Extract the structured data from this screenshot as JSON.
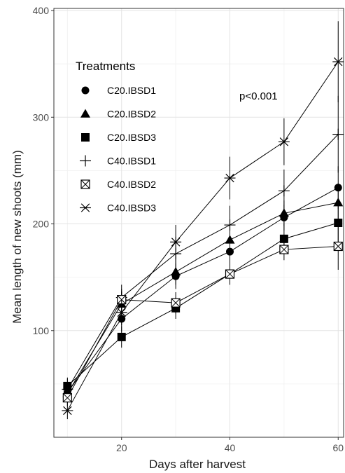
{
  "chart_data": {
    "type": "line",
    "xlabel": "Days after harvest",
    "ylabel": "Mean length of new shoots (mm)",
    "x": [
      10,
      20,
      30,
      40,
      50,
      60
    ],
    "xlim": [
      7.5,
      61
    ],
    "ylim": [
      0,
      402
    ],
    "xticks": [
      20,
      40,
      60
    ],
    "yticks": [
      100,
      200,
      300,
      400
    ],
    "grid": true,
    "legend": {
      "title": "Treatments",
      "placement": "top-left"
    },
    "annotation": "p<0.001",
    "series": [
      {
        "name": "C20.IBSD1",
        "marker": "circle",
        "values": [
          42,
          111,
          151,
          174,
          206,
          234
        ],
        "errors": [
          8,
          12,
          12,
          12,
          12,
          20
        ]
      },
      {
        "name": "C20.IBSD2",
        "marker": "triangle",
        "values": [
          41,
          125,
          155,
          185,
          210,
          220
        ],
        "errors": [
          8,
          12,
          12,
          12,
          12,
          18
        ]
      },
      {
        "name": "C20.IBSD3",
        "marker": "square",
        "values": [
          48,
          94,
          121,
          153,
          186,
          201
        ],
        "errors": [
          8,
          10,
          10,
          10,
          14,
          18
        ]
      },
      {
        "name": "C40.IBSD1",
        "marker": "plus",
        "values": [
          45,
          131,
          172,
          199,
          231,
          284
        ],
        "errors": [
          10,
          12,
          16,
          18,
          20,
          36
        ]
      },
      {
        "name": "C40.IBSD2",
        "marker": "square-x",
        "values": [
          37,
          129,
          126,
          153,
          176,
          179
        ],
        "errors": [
          8,
          10,
          10,
          10,
          10,
          22
        ]
      },
      {
        "name": "C40.IBSD3",
        "marker": "asterisk",
        "values": [
          25,
          117,
          183,
          243,
          277,
          352
        ],
        "errors": [
          8,
          12,
          16,
          20,
          22,
          38
        ]
      }
    ]
  }
}
